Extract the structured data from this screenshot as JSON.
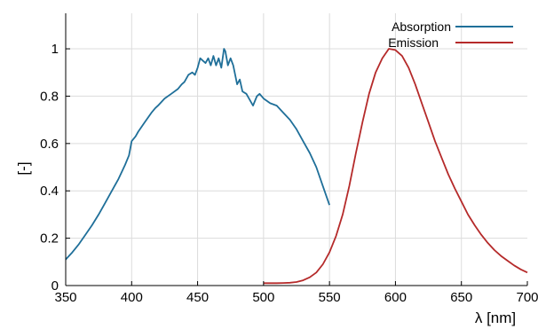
{
  "chart_data": {
    "type": "line",
    "xlabel": "λ [nm]",
    "ylabel": "[-]",
    "xlim": [
      350,
      700
    ],
    "ylim": [
      0,
      1.15
    ],
    "x_ticks": [
      "350",
      "400",
      "450",
      "500",
      "550",
      "600",
      "650",
      "700"
    ],
    "y_ticks": [
      "0",
      "0.2",
      "0.4",
      "0.6",
      "0.8",
      "1"
    ],
    "grid": true,
    "legend_position": "top-right",
    "series": [
      {
        "name": "Absorption",
        "color": "#1f6f99",
        "points": [
          [
            350,
            0.11
          ],
          [
            355,
            0.14
          ],
          [
            360,
            0.175
          ],
          [
            365,
            0.215
          ],
          [
            370,
            0.255
          ],
          [
            375,
            0.3
          ],
          [
            380,
            0.35
          ],
          [
            385,
            0.4
          ],
          [
            390,
            0.45
          ],
          [
            395,
            0.51
          ],
          [
            398,
            0.55
          ],
          [
            400,
            0.61
          ],
          [
            403,
            0.63
          ],
          [
            405,
            0.65
          ],
          [
            410,
            0.69
          ],
          [
            415,
            0.73
          ],
          [
            418,
            0.75
          ],
          [
            420,
            0.76
          ],
          [
            425,
            0.79
          ],
          [
            430,
            0.81
          ],
          [
            435,
            0.83
          ],
          [
            438,
            0.85
          ],
          [
            440,
            0.86
          ],
          [
            443,
            0.89
          ],
          [
            446,
            0.9
          ],
          [
            448,
            0.89
          ],
          [
            450,
            0.92
          ],
          [
            452,
            0.96
          ],
          [
            454,
            0.95
          ],
          [
            456,
            0.94
          ],
          [
            458,
            0.96
          ],
          [
            460,
            0.93
          ],
          [
            462,
            0.97
          ],
          [
            464,
            0.93
          ],
          [
            466,
            0.96
          ],
          [
            468,
            0.92
          ],
          [
            470,
            1.0
          ],
          [
            471,
            0.99
          ],
          [
            473,
            0.93
          ],
          [
            475,
            0.96
          ],
          [
            477,
            0.93
          ],
          [
            480,
            0.85
          ],
          [
            482,
            0.87
          ],
          [
            484,
            0.82
          ],
          [
            487,
            0.81
          ],
          [
            490,
            0.78
          ],
          [
            492,
            0.76
          ],
          [
            495,
            0.8
          ],
          [
            497,
            0.81
          ],
          [
            500,
            0.79
          ],
          [
            505,
            0.77
          ],
          [
            510,
            0.76
          ],
          [
            515,
            0.73
          ],
          [
            520,
            0.7
          ],
          [
            525,
            0.66
          ],
          [
            530,
            0.61
          ],
          [
            535,
            0.56
          ],
          [
            540,
            0.5
          ],
          [
            545,
            0.42
          ],
          [
            550,
            0.34
          ]
        ]
      },
      {
        "name": "Emission",
        "color": "#b52a2a",
        "points": [
          [
            500,
            0.01
          ],
          [
            505,
            0.01
          ],
          [
            510,
            0.01
          ],
          [
            515,
            0.011
          ],
          [
            520,
            0.012
          ],
          [
            525,
            0.015
          ],
          [
            530,
            0.022
          ],
          [
            535,
            0.035
          ],
          [
            540,
            0.055
          ],
          [
            545,
            0.09
          ],
          [
            550,
            0.14
          ],
          [
            555,
            0.21
          ],
          [
            560,
            0.3
          ],
          [
            565,
            0.42
          ],
          [
            570,
            0.56
          ],
          [
            575,
            0.69
          ],
          [
            580,
            0.81
          ],
          [
            585,
            0.9
          ],
          [
            590,
            0.96
          ],
          [
            595,
            1.0
          ],
          [
            600,
            0.995
          ],
          [
            605,
            0.97
          ],
          [
            610,
            0.92
          ],
          [
            615,
            0.85
          ],
          [
            620,
            0.77
          ],
          [
            625,
            0.69
          ],
          [
            630,
            0.61
          ],
          [
            635,
            0.54
          ],
          [
            640,
            0.47
          ],
          [
            645,
            0.41
          ],
          [
            650,
            0.355
          ],
          [
            655,
            0.3
          ],
          [
            660,
            0.255
          ],
          [
            665,
            0.215
          ],
          [
            670,
            0.18
          ],
          [
            675,
            0.15
          ],
          [
            680,
            0.125
          ],
          [
            685,
            0.105
          ],
          [
            690,
            0.085
          ],
          [
            695,
            0.068
          ],
          [
            700,
            0.055
          ]
        ]
      }
    ]
  }
}
